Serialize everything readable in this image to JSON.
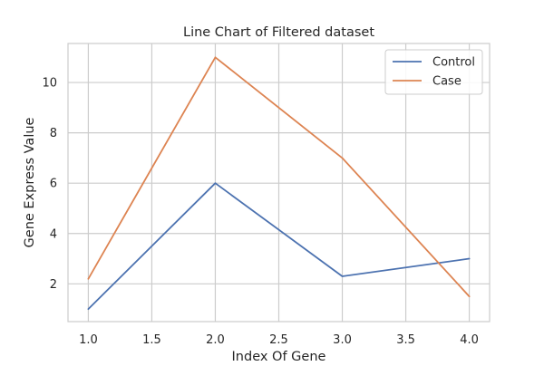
{
  "chart_data": {
    "type": "line",
    "title": "Line Chart of Filtered dataset",
    "xlabel": "Index Of Gene",
    "ylabel": "Gene Express Value",
    "x": [
      1.0,
      2.0,
      3.0,
      4.0
    ],
    "xlim": [
      0.84,
      4.16
    ],
    "ylim": [
      0.5,
      11.55
    ],
    "xticks": [
      1.0,
      1.5,
      2.0,
      2.5,
      3.0,
      3.5,
      4.0
    ],
    "xtick_labels": [
      "1.0",
      "1.5",
      "2.0",
      "2.5",
      "3.0",
      "3.5",
      "4.0"
    ],
    "yticks": [
      2,
      4,
      6,
      8,
      10
    ],
    "ytick_labels": [
      "2",
      "4",
      "6",
      "8",
      "10"
    ],
    "grid": true,
    "legend_position": "top-right",
    "series": [
      {
        "name": "Control",
        "color": "#4c72b0",
        "values": [
          1.0,
          6.0,
          2.3,
          3.0
        ]
      },
      {
        "name": "Case",
        "color": "#dd8452",
        "values": [
          2.2,
          11.0,
          7.0,
          1.5
        ]
      }
    ]
  }
}
